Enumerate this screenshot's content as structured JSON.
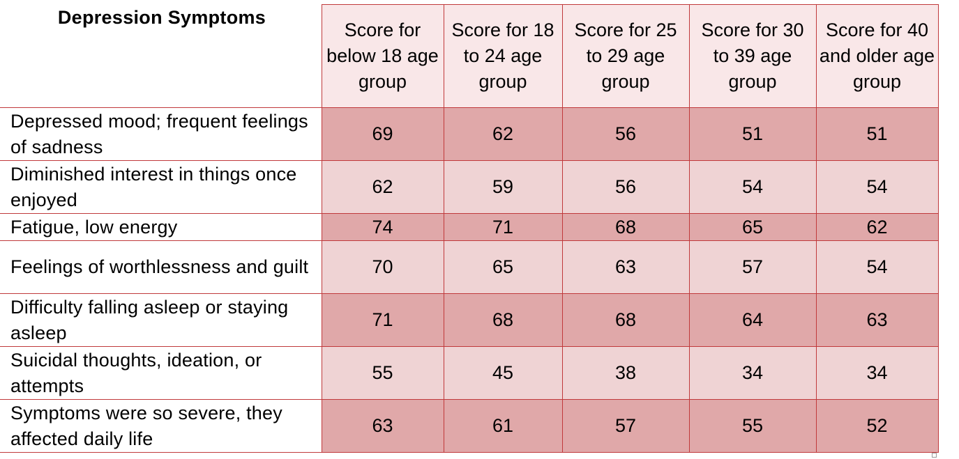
{
  "table": {
    "corner_header": "Depression Symptoms",
    "columns": [
      "Score for below 18 age group",
      "Score for 18 to 24 age group",
      "Score for 25 to 29 age group",
      "Score for 30 to 39 age group",
      "Score for 40 and older age group"
    ],
    "rows": [
      {
        "label": "Depressed mood; frequent feelings of sadness",
        "values": [
          "69",
          "62",
          "56",
          "51",
          "51"
        ]
      },
      {
        "label": "Diminished interest in things once enjoyed",
        "values": [
          "62",
          "59",
          "56",
          "54",
          "54"
        ]
      },
      {
        "label": "Fatigue, low energy",
        "values": [
          "74",
          "71",
          "68",
          "65",
          "62"
        ]
      },
      {
        "label": "Feelings of worthlessness and guilt",
        "values": [
          "70",
          "65",
          "63",
          "57",
          "54"
        ]
      },
      {
        "label": "Difficulty falling asleep or staying asleep",
        "values": [
          "71",
          "68",
          "68",
          "64",
          "63"
        ]
      },
      {
        "label": "Suicidal thoughts, ideation, or attempts",
        "values": [
          "55",
          "45",
          "38",
          "34",
          "34"
        ]
      },
      {
        "label": "Symptoms were so severe, they affected daily life",
        "values": [
          "63",
          "61",
          "57",
          "55",
          "52"
        ]
      }
    ]
  },
  "colors": {
    "border": "#c0393b",
    "header_fill": "#f9e7e8",
    "row_dark_fill": "#e0a8a9",
    "row_light_fill": "#efd3d4"
  }
}
